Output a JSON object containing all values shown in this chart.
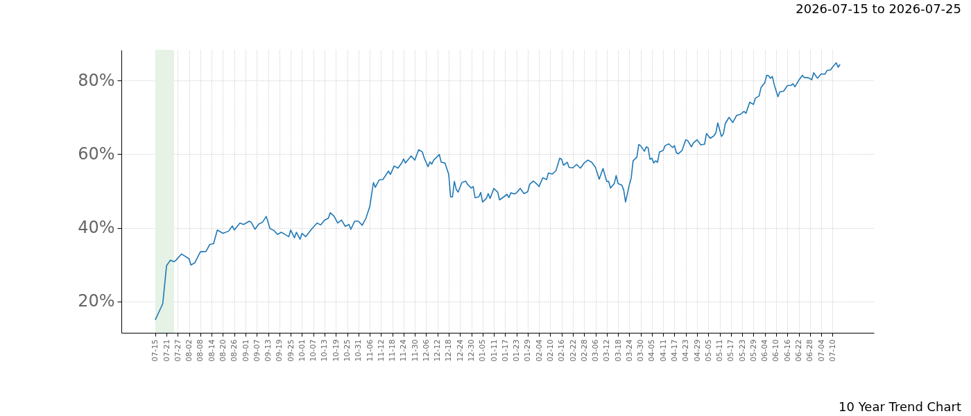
{
  "chart_data": {
    "type": "line",
    "title": "2026-07-15 to 2026-07-25",
    "annotations": [
      "10 Year Trend Chart"
    ],
    "x": [
      "2026-07-15",
      "2026-07-17",
      "2026-07-19",
      "2026-07-21",
      "2026-07-23",
      "2026-07-25",
      "2026-07-26",
      "2026-07-29",
      "2026-08-02",
      "2026-08-03",
      "2026-08-05",
      "2026-08-08",
      "2026-08-11",
      "2026-08-13",
      "2026-08-15",
      "2026-08-17",
      "2026-08-20",
      "2026-08-23",
      "2026-08-25",
      "2026-08-26",
      "2026-08-29",
      "2026-08-31",
      "2026-09-03",
      "2026-09-04",
      "2026-09-06",
      "2026-09-08",
      "2026-09-10",
      "2026-09-12",
      "2026-09-14",
      "2026-09-16",
      "2026-09-18",
      "2026-09-20",
      "2026-09-22",
      "2026-09-24",
      "2026-09-25",
      "2026-09-27",
      "2026-09-28",
      "2026-09-30",
      "2026-10-01",
      "2026-10-03",
      "2026-10-06",
      "2026-10-09",
      "2026-10-11",
      "2026-10-13",
      "2026-10-15",
      "2026-10-16",
      "2026-10-18",
      "2026-10-20",
      "2026-10-22",
      "2026-10-24",
      "2026-10-26",
      "2026-10-27",
      "2026-10-29",
      "2026-10-31",
      "2026-11-02",
      "2026-11-04",
      "2026-11-06",
      "2026-11-08",
      "2026-11-09",
      "2026-11-11",
      "2026-11-13",
      "2026-11-16",
      "2026-11-17",
      "2026-11-19",
      "2026-11-21",
      "2026-11-23",
      "2026-11-24",
      "2026-11-25",
      "2026-11-28",
      "2026-11-30",
      "2026-12-02",
      "2026-12-04",
      "2026-12-05",
      "2026-12-07",
      "2026-12-08",
      "2026-12-09",
      "2026-12-10",
      "2026-12-13",
      "2026-12-14",
      "2026-12-16",
      "2026-12-18",
      "2026-12-19",
      "2026-12-20",
      "2026-12-21",
      "2026-12-22",
      "2026-12-23",
      "2026-12-25",
      "2026-12-27",
      "2026-12-28",
      "2026-12-30",
      "2026-12-31",
      "2027-01-01",
      "2027-01-03",
      "2027-01-04",
      "2027-01-05",
      "2027-01-07",
      "2027-01-08",
      "2027-01-09",
      "2027-01-11",
      "2027-01-13",
      "2027-01-14",
      "2027-01-16",
      "2027-01-18",
      "2027-01-19",
      "2027-01-20",
      "2027-01-22",
      "2027-01-23",
      "2027-01-25",
      "2027-01-27",
      "2027-01-29",
      "2027-01-30",
      "2027-02-01",
      "2027-02-03",
      "2027-02-04",
      "2027-02-06",
      "2027-02-08",
      "2027-02-09",
      "2027-02-11",
      "2027-02-13",
      "2027-02-15",
      "2027-02-16",
      "2027-02-17",
      "2027-02-19",
      "2027-02-20",
      "2027-02-22",
      "2027-02-24",
      "2027-02-26",
      "2027-02-28",
      "2027-03-02",
      "2027-03-04",
      "2027-03-06",
      "2027-03-08",
      "2027-03-10",
      "2027-03-12",
      "2027-03-13",
      "2027-03-14",
      "2027-03-16",
      "2027-03-17",
      "2027-03-18",
      "2027-03-20",
      "2027-03-21",
      "2027-03-22",
      "2027-03-24",
      "2027-03-25",
      "2027-03-26",
      "2027-03-28",
      "2027-03-29",
      "2027-03-30",
      "2027-04-01",
      "2027-04-02",
      "2027-04-03",
      "2027-04-04",
      "2027-04-05",
      "2027-04-06",
      "2027-04-07",
      "2027-04-08",
      "2027-04-09",
      "2027-04-11",
      "2027-04-12",
      "2027-04-14",
      "2027-04-16",
      "2027-04-17",
      "2027-04-18",
      "2027-04-19",
      "2027-04-21",
      "2027-04-23",
      "2027-04-24",
      "2027-04-26",
      "2027-04-27",
      "2027-04-29",
      "2027-05-01",
      "2027-05-03",
      "2027-05-04",
      "2027-05-06",
      "2027-05-08",
      "2027-05-09",
      "2027-05-10",
      "2027-05-12",
      "2027-05-13",
      "2027-05-14",
      "2027-05-16",
      "2027-05-18",
      "2027-05-20",
      "2027-05-22",
      "2027-05-24",
      "2027-05-25",
      "2027-05-27",
      "2027-05-29",
      "2027-05-30",
      "2027-06-01",
      "2027-06-02",
      "2027-06-04",
      "2027-06-05",
      "2027-06-06",
      "2027-06-07",
      "2027-06-08",
      "2027-06-09",
      "2027-06-11",
      "2027-06-12",
      "2027-06-14",
      "2027-06-16",
      "2027-06-18",
      "2027-06-19",
      "2027-06-20",
      "2027-06-22",
      "2027-06-24",
      "2027-06-25",
      "2027-06-27",
      "2027-06-29",
      "2027-06-30",
      "2027-07-02",
      "2027-07-04",
      "2027-07-06",
      "2027-07-07",
      "2027-07-09",
      "2027-07-10",
      "2027-07-12",
      "2027-07-13",
      "2027-07-14"
    ],
    "series": [
      {
        "color": "#1f77b4",
        "values": [
          15.0,
          17.2,
          19.4,
          29.7,
          31.2,
          30.8,
          31.2,
          32.9,
          31.6,
          29.9,
          30.5,
          33.5,
          33.6,
          35.5,
          35.7,
          39.4,
          38.5,
          39.1,
          40.5,
          39.4,
          41.3,
          40.9,
          41.8,
          41.5,
          39.6,
          41.0,
          41.5,
          43.1,
          39.8,
          39.3,
          38.2,
          38.8,
          38.2,
          37.6,
          39.4,
          37.3,
          38.8,
          36.9,
          38.5,
          37.6,
          39.6,
          41.3,
          40.8,
          42.1,
          42.6,
          44.1,
          43.2,
          41.3,
          42.1,
          40.4,
          40.9,
          39.6,
          41.8,
          41.8,
          40.7,
          42.6,
          45.7,
          52.3,
          51.0,
          53.0,
          53.1,
          55.4,
          54.5,
          56.8,
          56.2,
          57.6,
          58.7,
          57.6,
          59.5,
          58.4,
          61.2,
          60.6,
          58.9,
          56.6,
          57.9,
          57.3,
          58.4,
          59.9,
          57.8,
          57.6,
          54.5,
          48.4,
          48.4,
          52.6,
          50.4,
          49.7,
          52.3,
          52.7,
          51.8,
          50.8,
          51.2,
          48.2,
          48.4,
          49.6,
          47.0,
          48.0,
          49.3,
          48.0,
          50.7,
          49.7,
          47.6,
          48.3,
          49.1,
          48.2,
          49.5,
          49.2,
          49.5,
          50.7,
          49.3,
          49.8,
          51.8,
          52.7,
          51.8,
          51.2,
          53.6,
          53.1,
          54.9,
          54.6,
          55.5,
          58.9,
          58.6,
          57.0,
          57.8,
          56.4,
          56.3,
          57.2,
          56.2,
          57.6,
          58.4,
          57.8,
          56.4,
          53.2,
          56.1,
          52.6,
          52.6,
          50.8,
          52.0,
          54.2,
          52.0,
          51.6,
          50.3,
          47.0,
          51.7,
          53.5,
          58.2,
          59.2,
          62.6,
          62.3,
          60.8,
          62.0,
          61.7,
          58.6,
          58.9,
          57.6,
          58.2,
          57.8,
          60.6,
          61.0,
          62.3,
          62.8,
          61.8,
          62.3,
          60.4,
          60.1,
          61.0,
          63.9,
          63.7,
          62.0,
          63.0,
          63.9,
          62.5,
          62.7,
          65.6,
          64.3,
          65.0,
          65.8,
          68.5,
          64.8,
          65.5,
          68.3,
          70.0,
          68.6,
          70.5,
          70.8,
          71.6,
          71.1,
          74.1,
          73.5,
          75.2,
          75.8,
          78.1,
          79.4,
          81.4,
          81.3,
          80.6,
          81.1,
          78.9,
          75.6,
          76.9,
          77.1,
          78.6,
          78.7,
          79.1,
          78.3,
          80.0,
          81.4,
          80.8,
          80.8,
          80.2,
          82.1,
          80.6,
          81.8,
          81.7,
          82.7,
          82.9,
          83.6,
          84.8,
          83.6,
          84.4
        ]
      }
    ],
    "xlim": [
      "2026-06-27",
      "2027-08-01"
    ],
    "xticks": [
      {
        "value": "2026-07-15",
        "label": "07-15"
      },
      {
        "value": "2026-07-21",
        "label": "07-21"
      },
      {
        "value": "2026-07-27",
        "label": "07-27"
      },
      {
        "value": "2026-08-02",
        "label": "08-02"
      },
      {
        "value": "2026-08-08",
        "label": "08-08"
      },
      {
        "value": "2026-08-14",
        "label": "08-14"
      },
      {
        "value": "2026-08-20",
        "label": "08-20"
      },
      {
        "value": "2026-08-26",
        "label": "08-26"
      },
      {
        "value": "2026-09-01",
        "label": "09-01"
      },
      {
        "value": "2026-09-07",
        "label": "09-07"
      },
      {
        "value": "2026-09-13",
        "label": "09-13"
      },
      {
        "value": "2026-09-19",
        "label": "09-19"
      },
      {
        "value": "2026-09-25",
        "label": "09-25"
      },
      {
        "value": "2026-10-01",
        "label": "10-01"
      },
      {
        "value": "2026-10-07",
        "label": "10-07"
      },
      {
        "value": "2026-10-13",
        "label": "10-13"
      },
      {
        "value": "2026-10-19",
        "label": "10-19"
      },
      {
        "value": "2026-10-25",
        "label": "10-25"
      },
      {
        "value": "2026-10-31",
        "label": "10-31"
      },
      {
        "value": "2026-11-06",
        "label": "11-06"
      },
      {
        "value": "2026-11-12",
        "label": "11-12"
      },
      {
        "value": "2026-11-18",
        "label": "11-18"
      },
      {
        "value": "2026-11-24",
        "label": "11-24"
      },
      {
        "value": "2026-11-30",
        "label": "11-30"
      },
      {
        "value": "2026-12-06",
        "label": "12-06"
      },
      {
        "value": "2026-12-12",
        "label": "12-12"
      },
      {
        "value": "2026-12-18",
        "label": "12-18"
      },
      {
        "value": "2026-12-24",
        "label": "12-24"
      },
      {
        "value": "2026-12-30",
        "label": "12-30"
      },
      {
        "value": "2027-01-05",
        "label": "01-05"
      },
      {
        "value": "2027-01-11",
        "label": "01-11"
      },
      {
        "value": "2027-01-17",
        "label": "01-17"
      },
      {
        "value": "2027-01-23",
        "label": "01-23"
      },
      {
        "value": "2027-01-29",
        "label": "01-29"
      },
      {
        "value": "2027-02-04",
        "label": "02-04"
      },
      {
        "value": "2027-02-10",
        "label": "02-10"
      },
      {
        "value": "2027-02-16",
        "label": "02-16"
      },
      {
        "value": "2027-02-22",
        "label": "02-22"
      },
      {
        "value": "2027-02-28",
        "label": "02-28"
      },
      {
        "value": "2027-03-06",
        "label": "03-06"
      },
      {
        "value": "2027-03-12",
        "label": "03-12"
      },
      {
        "value": "2027-03-18",
        "label": "03-18"
      },
      {
        "value": "2027-03-24",
        "label": "03-24"
      },
      {
        "value": "2027-03-30",
        "label": "03-30"
      },
      {
        "value": "2027-04-05",
        "label": "04-05"
      },
      {
        "value": "2027-04-11",
        "label": "04-11"
      },
      {
        "value": "2027-04-17",
        "label": "04-17"
      },
      {
        "value": "2027-04-23",
        "label": "04-23"
      },
      {
        "value": "2027-04-29",
        "label": "04-29"
      },
      {
        "value": "2027-05-05",
        "label": "05-05"
      },
      {
        "value": "2027-05-11",
        "label": "05-11"
      },
      {
        "value": "2027-05-17",
        "label": "05-17"
      },
      {
        "value": "2027-05-23",
        "label": "05-23"
      },
      {
        "value": "2027-05-29",
        "label": "05-29"
      },
      {
        "value": "2027-06-04",
        "label": "06-04"
      },
      {
        "value": "2027-06-10",
        "label": "06-10"
      },
      {
        "value": "2027-06-16",
        "label": "06-16"
      },
      {
        "value": "2027-06-22",
        "label": "06-22"
      },
      {
        "value": "2027-06-28",
        "label": "06-28"
      },
      {
        "value": "2027-07-04",
        "label": "07-04"
      },
      {
        "value": "2027-07-10",
        "label": "07-10"
      }
    ],
    "ylim": [
      11.5,
      88.3
    ],
    "yticks": [
      {
        "value": 20,
        "label": "20%"
      },
      {
        "value": 40,
        "label": "40%"
      },
      {
        "value": 60,
        "label": "60%"
      },
      {
        "value": 80,
        "label": "80%"
      }
    ],
    "bands": [
      {
        "axis": "x",
        "from": "2026-07-15",
        "to": "2026-07-25",
        "color": "#e5f2e5"
      }
    ],
    "grid": true,
    "line_style": "solid"
  }
}
